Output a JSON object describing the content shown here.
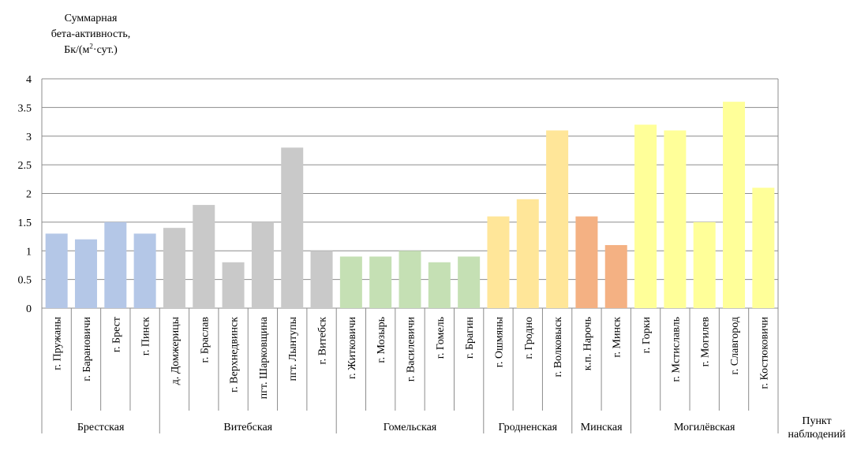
{
  "chart_data": {
    "type": "bar",
    "ylabel_lines": [
      "Суммарная",
      "бета-активность,",
      "Бк/(м",
      "2",
      "·сут.)"
    ],
    "xlabel_lines": [
      "Пункт",
      "наблюдений"
    ],
    "ylim": [
      0,
      4
    ],
    "yticks": [
      "0",
      "0.5",
      "1",
      "1.5",
      "2",
      "2.5",
      "3",
      "3.5",
      "4"
    ],
    "grid": true,
    "categories": [
      "г. Пружаны",
      "г. Барановичи",
      "г. Брест",
      "г. Пинск",
      "д. Домжерицы",
      "г. Браслав",
      "г. Верхнедвинск",
      "пгт. Шарковщина",
      "пгт. Лынтупы",
      "г. Витебск",
      "г. Житковичи",
      "г. Мозырь",
      "г. Василевичи",
      "г. Гомель",
      "г. Брагин",
      "г. Ошмяны",
      "г. Гродно",
      "г. Волковыск",
      "к.п. Нарочь",
      "г. Минск",
      "г. Горки",
      "г. Мстиславль",
      "г. Могилев",
      "г. Славгород",
      "г. Костюковичи"
    ],
    "values": [
      1.3,
      1.2,
      1.5,
      1.3,
      1.4,
      1.8,
      0.8,
      1.5,
      2.8,
      1.0,
      0.9,
      0.9,
      1.0,
      0.8,
      0.9,
      1.6,
      1.9,
      3.1,
      1.6,
      1.1,
      3.2,
      3.1,
      1.5,
      3.6,
      2.1
    ],
    "groups": [
      {
        "name": "Брестская",
        "count": 4,
        "color": "#b4c7e7"
      },
      {
        "name": "Витебская",
        "count": 6,
        "color": "#c9c9c9"
      },
      {
        "name": "Гомельская",
        "count": 5,
        "color": "#c5e0b4"
      },
      {
        "name": "Гродненская",
        "count": 3,
        "color": "#ffe699"
      },
      {
        "name": "Минская",
        "count": 2,
        "color": "#f4b183"
      },
      {
        "name": "Могилёвская",
        "count": 5,
        "color": "#ffff99"
      }
    ]
  }
}
